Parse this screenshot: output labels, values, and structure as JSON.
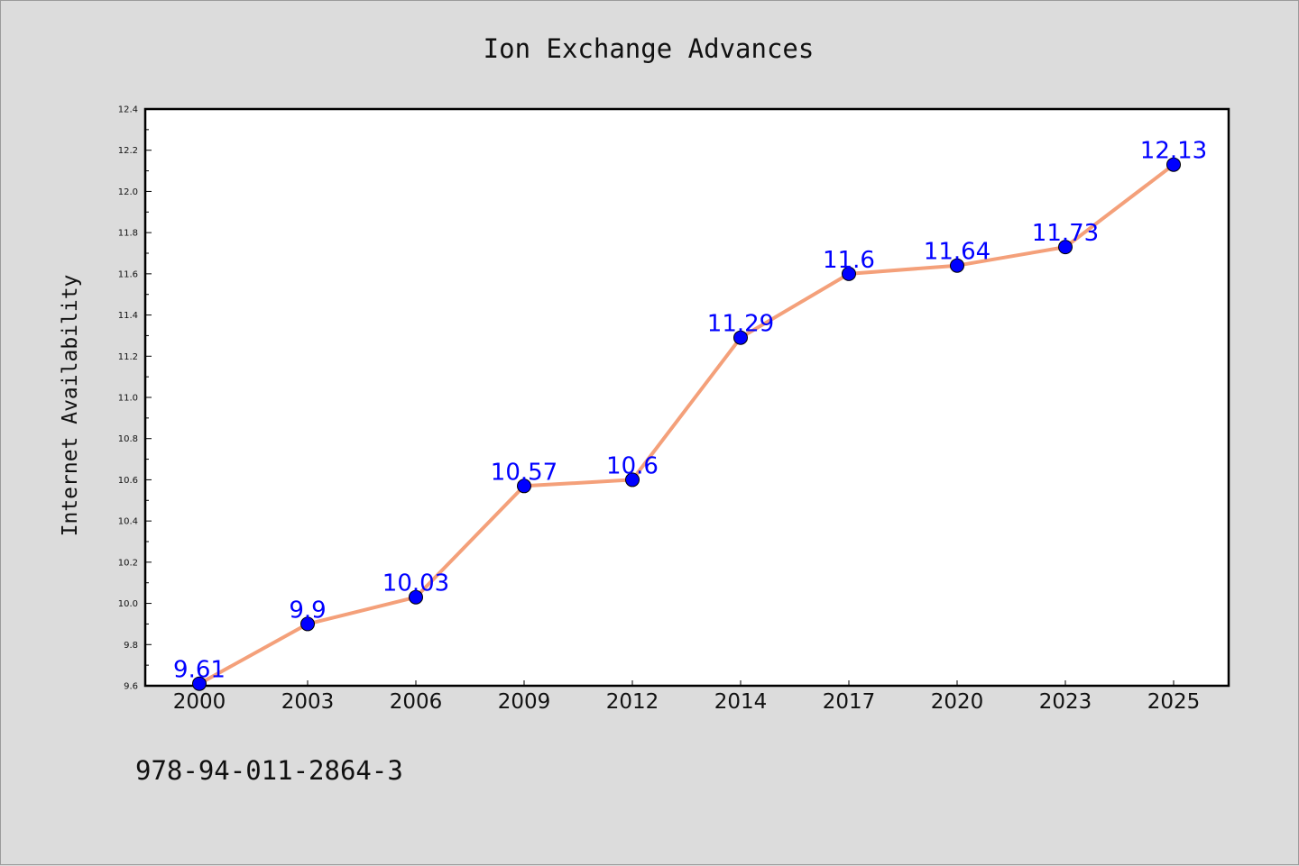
{
  "chart_data": {
    "type": "line",
    "title": "Ion Exchange Advances",
    "xlabel": "",
    "ylabel": "Internet Availability",
    "categories": [
      "2000",
      "2003",
      "2006",
      "2009",
      "2012",
      "2014",
      "2017",
      "2020",
      "2023",
      "2025"
    ],
    "series": [
      {
        "values": [
          9.61,
          9.9,
          10.03,
          10.57,
          10.6,
          11.29,
          11.6,
          11.64,
          11.73,
          12.13
        ],
        "data_labels": [
          "9.61",
          "9.9",
          "10.03",
          "10.57",
          "10.6",
          "11.29",
          "11.6",
          "11.64",
          "11.73",
          "12.13"
        ],
        "line_color": "#f4a07a",
        "marker_color": "#0000ff"
      }
    ],
    "ylim": [
      9.6,
      12.4
    ],
    "yticks": [
      "9.6",
      "9.8",
      "10.0",
      "10.2",
      "10.4",
      "10.6",
      "10.8",
      "11.0",
      "11.2",
      "11.4",
      "11.6",
      "11.8",
      "12.0",
      "12.2",
      "12.4"
    ],
    "grid": false,
    "legend": "none"
  },
  "footer": {
    "text": "978-94-011-2864-3"
  }
}
